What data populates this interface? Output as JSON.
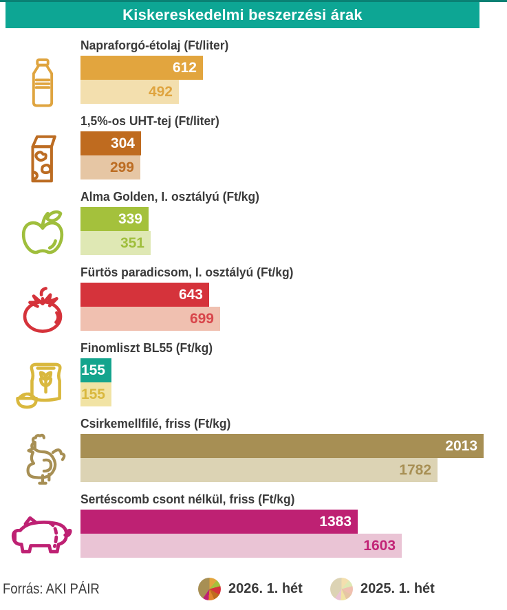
{
  "header": {
    "title": "Kiskereskedelmi beszerzési árak",
    "banner_color": "#0da694",
    "topline_color": "#0a8174"
  },
  "products": [
    {
      "title": "Napraforgó-étolaj (Ft/liter)",
      "value_2026": 612,
      "value_2025": 492,
      "color_primary": "#e2a53e",
      "color_light": "#f3dfae",
      "light_text_color": "#dfa43f",
      "icon": "oil-bottle-icon",
      "icon_color": "#dfa43f"
    },
    {
      "title": "1,5%-os UHT-tej (Ft/liter)",
      "value_2026": 304,
      "value_2025": 299,
      "color_primary": "#bf6b1f",
      "color_light": "#e6c6a4",
      "light_text_color": "#bc6c22",
      "icon": "milk-carton-icon",
      "icon_color": "#bc6c22"
    },
    {
      "title": "Alma Golden, I. osztályú (Ft/kg)",
      "value_2026": 339,
      "value_2025": 351,
      "color_primary": "#a4c13c",
      "color_light": "#dfe8b4",
      "light_text_color": "#9fbe3c",
      "icon": "apple-icon",
      "icon_color": "#9fbe3c"
    },
    {
      "title": "Fürtös paradicsom, I. osztályú (Ft/kg)",
      "value_2026": 643,
      "value_2025": 699,
      "color_primary": "#d5333b",
      "color_light": "#f0c0b0",
      "light_text_color": "#d8454b",
      "icon": "tomato-icon",
      "icon_color": "#d5333b"
    },
    {
      "title": "Finomliszt BL55 (Ft/kg)",
      "value_2026": 155,
      "value_2025": 155,
      "color_primary": "#14a48d",
      "color_light": "#f1e3a4",
      "light_text_color": "#d9b83e",
      "icon": "flour-sack-icon",
      "icon_color": "#d9b83e"
    },
    {
      "title": "Csirkemellfilé, friss (Ft/kg)",
      "value_2026": 2013,
      "value_2025": 1782,
      "color_primary": "#a78f54",
      "color_light": "#dcd3b4",
      "light_text_color": "#a78f54",
      "icon": "chicken-icon",
      "icon_color": "#a78f54"
    },
    {
      "title": "Sertéscomb csont nélkül, friss (Ft/kg)",
      "value_2026": 1383,
      "value_2025": 1603,
      "color_primary": "#be2173",
      "color_light": "#eac4d5",
      "light_text_color": "#c22577",
      "icon": "pig-icon",
      "icon_color": "#be2173"
    }
  ],
  "footer": {
    "source": "Forrás: AKI PÁIR"
  },
  "legend": [
    {
      "label": "2026. 1. hét",
      "pie_colors": [
        "#e2a53e",
        "#a4c13c",
        "#d5333b",
        "#bf6b1f",
        "#e0852e",
        "#be2173",
        "#a78f54"
      ]
    },
    {
      "label": "2025. 1. hét",
      "pie_colors": [
        "#f3dfae",
        "#dfe8b4",
        "#f0c0b0",
        "#e6c6a4",
        "#f1e3a4",
        "#eac4d5",
        "#dcd3b4"
      ]
    }
  ],
  "chart_data": {
    "type": "bar",
    "orientation": "horizontal",
    "title": "Kiskereskedelmi beszerzési árak",
    "categories": [
      "Napraforgó-étolaj (Ft/liter)",
      "1,5%-os UHT-tej (Ft/liter)",
      "Alma Golden, I. osztályú (Ft/kg)",
      "Fürtös paradicsom, I. osztályú (Ft/kg)",
      "Finomliszt BL55 (Ft/kg)",
      "Csirkemellfilé, friss (Ft/kg)",
      "Sertéscomb csont nélkül, friss (Ft/kg)"
    ],
    "series": [
      {
        "name": "2026. 1. hét",
        "values": [
          612,
          304,
          339,
          643,
          155,
          2013,
          1383
        ]
      },
      {
        "name": "2025. 1. hét",
        "values": [
          492,
          299,
          351,
          699,
          155,
          1782,
          1603
        ]
      }
    ],
    "value_axis_max": 2013,
    "grid": false,
    "legend_position": "bottom",
    "data_labels": true,
    "source": "Forrás: AKI PÁIR"
  }
}
